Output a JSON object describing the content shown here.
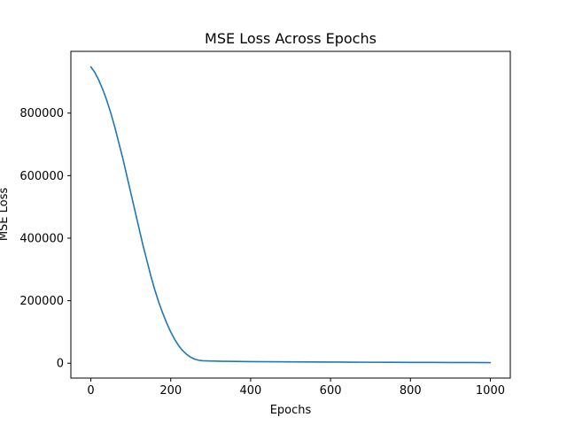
{
  "colors": {
    "series": "#1f77b4",
    "axis": "#000000",
    "background": "#ffffff"
  },
  "chart_data": {
    "type": "line",
    "title": "MSE Loss Across Epochs",
    "xlabel": "Epochs",
    "ylabel": "MSE Loss",
    "xlim": [
      -50,
      1050
    ],
    "ylim": [
      -47500,
      997500
    ],
    "grid": false,
    "legend": "none",
    "x_ticks": [
      0,
      200,
      400,
      600,
      800,
      1000
    ],
    "x_tick_labels": [
      "0",
      "200",
      "400",
      "600",
      "800",
      "1000"
    ],
    "y_ticks": [
      0,
      200000,
      400000,
      600000,
      800000
    ],
    "y_tick_labels": [
      "0",
      "200000",
      "400000",
      "600000",
      "800000"
    ],
    "series": [
      {
        "name": "MSE Loss",
        "x": [
          0,
          10,
          20,
          30,
          40,
          50,
          60,
          70,
          80,
          90,
          100,
          110,
          120,
          130,
          140,
          150,
          160,
          170,
          180,
          190,
          200,
          210,
          220,
          230,
          240,
          250,
          260,
          270,
          280,
          290,
          300,
          310,
          320,
          330,
          340,
          360,
          400,
          450,
          500,
          550,
          600,
          650,
          700,
          750,
          800,
          850,
          900,
          950,
          1000
        ],
        "y": [
          948000,
          930000,
          905000,
          875000,
          840000,
          800000,
          755000,
          705000,
          655000,
          600000,
          545000,
          490000,
          435000,
          380000,
          330000,
          280000,
          235000,
          195000,
          160000,
          128000,
          100000,
          76000,
          56000,
          40000,
          28000,
          19000,
          13000,
          9500,
          8000,
          7400,
          7000,
          6700,
          6400,
          6200,
          6000,
          5700,
          5200,
          4800,
          4400,
          4000,
          3700,
          3400,
          3100,
          2900,
          2700,
          2500,
          2300,
          2150,
          2000
        ]
      }
    ]
  }
}
